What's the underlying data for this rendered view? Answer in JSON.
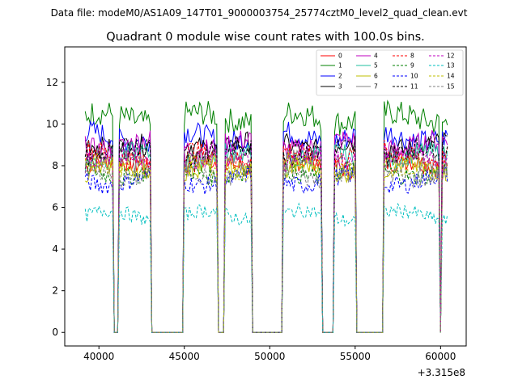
{
  "chart_data": {
    "type": "line",
    "suptitle": "Data file: modeM0/AS1A09_147T01_9000003754_25774cztM0_level2_quad_clean.evt",
    "title": "Quadrant 0 module wise count rates with 100.0s bins.",
    "xlabel": "",
    "ylabel": "",
    "x_offset_label": "+3.315e8",
    "xlim": [
      38000,
      61500
    ],
    "ylim": [
      -0.65,
      13.7
    ],
    "xticks": [
      40000,
      45000,
      50000,
      55000,
      60000
    ],
    "yticks": [
      0,
      2,
      4,
      6,
      8,
      10,
      12
    ],
    "grid": false,
    "legend_position": "top-right",
    "segments": [
      [
        39200,
        40850
      ],
      [
        41200,
        43000
      ],
      [
        45000,
        46900
      ],
      [
        47350,
        48900
      ],
      [
        50800,
        53000
      ],
      [
        53800,
        55000
      ],
      [
        56700,
        59900
      ],
      [
        60100,
        60400
      ]
    ],
    "series": [
      {
        "name": "0",
        "color": "#ff0000",
        "dash": "solid",
        "level": 8.0
      },
      {
        "name": "1",
        "color": "#008000",
        "dash": "solid",
        "level": 10.3
      },
      {
        "name": "2",
        "color": "#0000ff",
        "dash": "solid",
        "level": 9.4
      },
      {
        "name": "3",
        "color": "#000000",
        "dash": "solid",
        "level": 9.0
      },
      {
        "name": "4",
        "color": "#bf00bf",
        "dash": "solid",
        "level": 9.0
      },
      {
        "name": "5",
        "color": "#1fbf9f",
        "dash": "solid",
        "level": 8.4
      },
      {
        "name": "6",
        "color": "#bfbf00",
        "dash": "solid",
        "level": 7.8
      },
      {
        "name": "7",
        "color": "#808080",
        "dash": "solid",
        "level": 8.2
      },
      {
        "name": "8",
        "color": "#ff0000",
        "dash": "dashed",
        "level": 8.5
      },
      {
        "name": "9",
        "color": "#008000",
        "dash": "dashed",
        "level": 7.7
      },
      {
        "name": "10",
        "color": "#0000ff",
        "dash": "dashed",
        "level": 7.3
      },
      {
        "name": "11",
        "color": "#000000",
        "dash": "dashed",
        "level": 8.7
      },
      {
        "name": "12",
        "color": "#bf00bf",
        "dash": "dashed",
        "level": 8.3
      },
      {
        "name": "13",
        "color": "#00bfbf",
        "dash": "dashed",
        "level": 5.6
      },
      {
        "name": "14",
        "color": "#bfbf00",
        "dash": "dashed",
        "level": 7.9
      },
      {
        "name": "15",
        "color": "#808080",
        "dash": "dashed",
        "level": 7.6
      }
    ]
  }
}
